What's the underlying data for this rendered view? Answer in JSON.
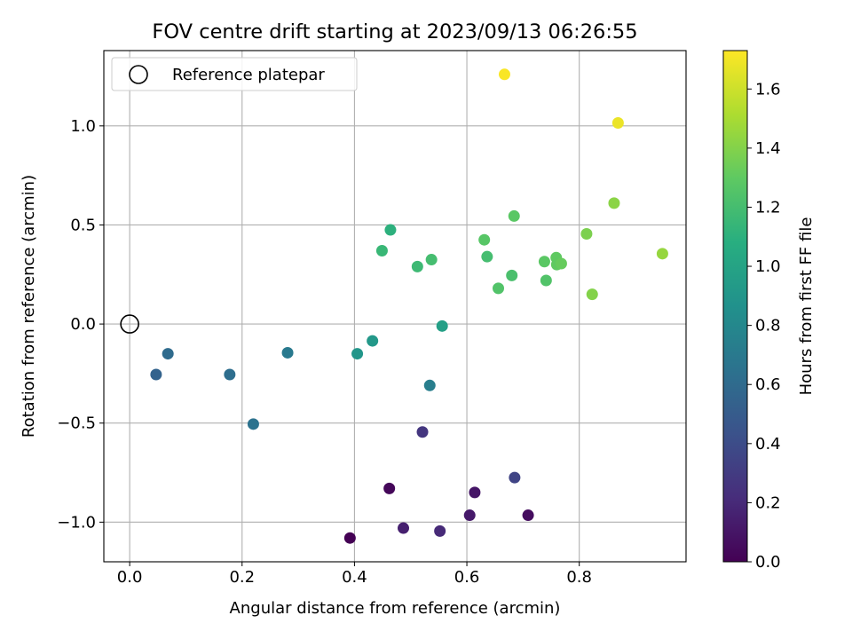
{
  "chart_data": {
    "type": "scatter",
    "title": "FOV centre drift starting at 2023/09/13 06:26:55",
    "xlabel": "Angular distance from reference (arcmin)",
    "ylabel": "Rotation from reference (arcmin)",
    "xlim": [
      -0.046,
      0.99
    ],
    "ylim": [
      -1.2,
      1.38
    ],
    "xticks": [
      "0.0",
      "0.2",
      "0.4",
      "0.6",
      "0.8"
    ],
    "yticks": [
      "−1.0",
      "−0.5",
      "0.0",
      "0.5",
      "1.0"
    ],
    "grid": true,
    "legend_position": "top-left",
    "legend": [
      {
        "label": "Reference platepar",
        "marker": "open-circle"
      }
    ],
    "reference_point": {
      "x": 0.0,
      "y": 0.0
    },
    "colormap": "viridis",
    "colorbar": {
      "label": "Hours from first FF file",
      "range": [
        0.0,
        1.73
      ],
      "ticks": [
        "0.0",
        "0.2",
        "0.4",
        "0.6",
        "0.8",
        "1.0",
        "1.2",
        "1.4",
        "1.6"
      ]
    },
    "points": [
      {
        "x": 0.392,
        "y": -1.08,
        "c": 0.0
      },
      {
        "x": 0.462,
        "y": -0.83,
        "c": 0.03
      },
      {
        "x": 0.709,
        "y": -0.965,
        "c": 0.06
      },
      {
        "x": 0.614,
        "y": -0.85,
        "c": 0.1
      },
      {
        "x": 0.605,
        "y": -0.965,
        "c": 0.12
      },
      {
        "x": 0.487,
        "y": -1.03,
        "c": 0.15
      },
      {
        "x": 0.552,
        "y": -1.045,
        "c": 0.2
      },
      {
        "x": 0.521,
        "y": -0.545,
        "c": 0.27
      },
      {
        "x": 0.685,
        "y": -0.775,
        "c": 0.35
      },
      {
        "x": 0.047,
        "y": -0.255,
        "c": 0.55
      },
      {
        "x": 0.068,
        "y": -0.15,
        "c": 0.6
      },
      {
        "x": 0.178,
        "y": -0.255,
        "c": 0.62
      },
      {
        "x": 0.22,
        "y": -0.505,
        "c": 0.65
      },
      {
        "x": 0.281,
        "y": -0.145,
        "c": 0.7
      },
      {
        "x": 0.534,
        "y": -0.31,
        "c": 0.73
      },
      {
        "x": 0.405,
        "y": -0.15,
        "c": 0.9
      },
      {
        "x": 0.432,
        "y": -0.085,
        "c": 0.92
      },
      {
        "x": 0.556,
        "y": -0.01,
        "c": 0.97
      },
      {
        "x": 0.464,
        "y": 0.475,
        "c": 1.1
      },
      {
        "x": 0.449,
        "y": 0.37,
        "c": 1.15
      },
      {
        "x": 0.512,
        "y": 0.29,
        "c": 1.17
      },
      {
        "x": 0.537,
        "y": 0.325,
        "c": 1.2
      },
      {
        "x": 0.636,
        "y": 0.34,
        "c": 1.2
      },
      {
        "x": 0.68,
        "y": 0.245,
        "c": 1.22
      },
      {
        "x": 0.656,
        "y": 0.18,
        "c": 1.25
      },
      {
        "x": 0.631,
        "y": 0.425,
        "c": 1.27
      },
      {
        "x": 0.684,
        "y": 0.545,
        "c": 1.28
      },
      {
        "x": 0.741,
        "y": 0.22,
        "c": 1.25
      },
      {
        "x": 0.738,
        "y": 0.315,
        "c": 1.28
      },
      {
        "x": 0.759,
        "y": 0.335,
        "c": 1.3
      },
      {
        "x": 0.76,
        "y": 0.3,
        "c": 1.3
      },
      {
        "x": 0.768,
        "y": 0.305,
        "c": 1.32
      },
      {
        "x": 0.813,
        "y": 0.455,
        "c": 1.38
      },
      {
        "x": 0.823,
        "y": 0.15,
        "c": 1.4
      },
      {
        "x": 0.862,
        "y": 0.61,
        "c": 1.42
      },
      {
        "x": 0.948,
        "y": 0.355,
        "c": 1.45
      },
      {
        "x": 0.667,
        "y": 1.26,
        "c": 1.72
      },
      {
        "x": 0.869,
        "y": 1.015,
        "c": 1.68
      }
    ]
  }
}
